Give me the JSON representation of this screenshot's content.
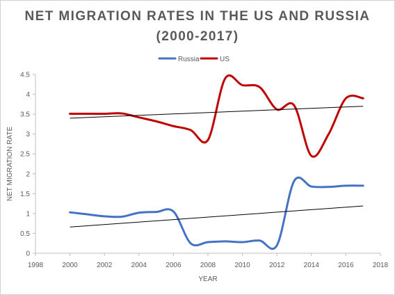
{
  "title_line1": "NET MIGRATION RATES IN THE US AND RUSSIA",
  "title_line2": "(2000-2017)",
  "chart_data": {
    "type": "line",
    "title": "NET MIGRATION RATES IN THE US AND RUSSIA (2000-2017)",
    "xlabel": "YEAR",
    "ylabel": "NET MIGRATION RATE",
    "xlim": [
      1998,
      2018
    ],
    "ylim": [
      0,
      4.5
    ],
    "x_ticks": [
      "1998",
      "2000",
      "2002",
      "2004",
      "2006",
      "2008",
      "2010",
      "2012",
      "2014",
      "2016",
      "2018"
    ],
    "y_ticks": [
      "0",
      "0.5",
      "1",
      "1.5",
      "2",
      "2.5",
      "3",
      "3.5",
      "4",
      "4.5"
    ],
    "legend_position": "top-center",
    "smoothed": true,
    "series": [
      {
        "name": "Russia",
        "color": "#4472C4",
        "x": [
          2000,
          2001,
          2002,
          2003,
          2004,
          2005,
          2006,
          2007,
          2008,
          2009,
          2010,
          2011,
          2012,
          2013,
          2014,
          2015,
          2016,
          2017
        ],
        "values": [
          1.03,
          0.98,
          0.93,
          0.92,
          1.02,
          1.04,
          1.05,
          0.25,
          0.28,
          0.3,
          0.28,
          0.32,
          0.2,
          1.82,
          1.68,
          1.67,
          1.7,
          1.7
        ]
      },
      {
        "name": "US",
        "color": "#C00000",
        "x": [
          2000,
          2001,
          2002,
          2003,
          2004,
          2005,
          2006,
          2007,
          2008,
          2009,
          2010,
          2011,
          2012,
          2013,
          2014,
          2015,
          2016,
          2017
        ],
        "values": [
          3.51,
          3.51,
          3.51,
          3.52,
          3.42,
          3.32,
          3.2,
          3.1,
          2.85,
          4.4,
          4.23,
          4.18,
          3.62,
          3.72,
          2.45,
          3.0,
          3.9,
          3.9
        ]
      }
    ],
    "trendlines": [
      {
        "series": "US",
        "color": "#000000",
        "x": [
          2000,
          2017
        ],
        "values": [
          3.4,
          3.7
        ]
      },
      {
        "series": "Russia",
        "color": "#000000",
        "x": [
          2000,
          2017
        ],
        "values": [
          0.66,
          1.19
        ]
      }
    ]
  }
}
